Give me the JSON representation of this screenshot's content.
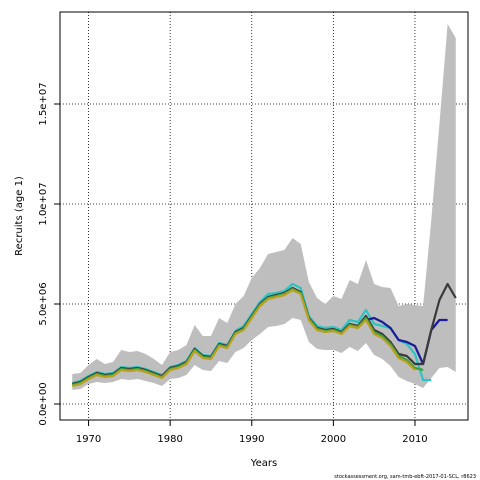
{
  "chart_data": {
    "type": "line",
    "xlabel": "Years",
    "ylabel": "Recruits (age 1)",
    "footer": "stockassessment.org, sam-tmb-ebft-2017-01-SCL, r8623",
    "xlim": [
      1966.5,
      2016.5
    ],
    "ylim": [
      -800000,
      19600000
    ],
    "x_ticks": [
      1970,
      1980,
      1990,
      2000,
      2010
    ],
    "x_tick_labels": [
      "1970",
      "1980",
      "1990",
      "2000",
      "2010"
    ],
    "y_ticks": [
      0,
      5000000,
      10000000,
      15000000
    ],
    "y_tick_labels": [
      "0.0e+00",
      "5.0e+06",
      "1.0e+07",
      "1.5e+07"
    ],
    "grid": true,
    "band": {
      "x": [
        1968,
        1969,
        1970,
        1971,
        1972,
        1973,
        1974,
        1975,
        1976,
        1977,
        1978,
        1979,
        1980,
        1981,
        1982,
        1983,
        1984,
        1985,
        1986,
        1987,
        1988,
        1989,
        1990,
        1991,
        1992,
        1993,
        1994,
        1995,
        1996,
        1997,
        1998,
        1999,
        2000,
        2001,
        2002,
        2003,
        2004,
        2005,
        2006,
        2007,
        2008,
        2009,
        2010,
        2011,
        2012,
        2013,
        2014,
        2015
      ],
      "lower": [
        700000,
        750000,
        1000000,
        1100000,
        1050000,
        1100000,
        1250000,
        1200000,
        1250000,
        1150000,
        1050000,
        900000,
        1250000,
        1300000,
        1450000,
        1950000,
        1700000,
        1650000,
        2150000,
        2050000,
        2600000,
        2800000,
        3200000,
        3500000,
        3850000,
        3900000,
        4000000,
        4300000,
        4200000,
        3100000,
        2750000,
        2700000,
        2700000,
        2550000,
        2850000,
        2650000,
        3050000,
        2450000,
        2250000,
        1900000,
        1350000,
        1150000,
        1000000,
        800000,
        1300000,
        1800000,
        1850000,
        1600000
      ],
      "upper": [
        1500000,
        1550000,
        1950000,
        2250000,
        2000000,
        2100000,
        2700000,
        2600000,
        2650000,
        2500000,
        2250000,
        1950000,
        2600000,
        2700000,
        2950000,
        3950000,
        3400000,
        3400000,
        4300000,
        4050000,
        5000000,
        5400000,
        6300000,
        6800000,
        7500000,
        7600000,
        7700000,
        8300000,
        8000000,
        6100000,
        5300000,
        5000000,
        5400000,
        5250000,
        6200000,
        6000000,
        7200000,
        6000000,
        5850000,
        5800000,
        4900000,
        5000000,
        4950000,
        4900000,
        9200000,
        14000000,
        19000000,
        18300000
      ]
    },
    "series": [
      {
        "color": "#2ec4c4",
        "x": [
          1968,
          1969,
          1970,
          1971,
          1972,
          1973,
          1974,
          1975,
          1976,
          1977,
          1978,
          1979,
          1980,
          1981,
          1982,
          1983,
          1984,
          1985,
          1986,
          1987,
          1988,
          1989,
          1990,
          1991,
          1992,
          1993,
          1994,
          1995,
          1996,
          1997,
          1998,
          1999,
          2000,
          2001,
          2002,
          2003,
          2004,
          2005,
          2006,
          2007,
          2008,
          2009,
          2010,
          2011,
          2012
        ],
        "values": [
          1050000,
          1150000,
          1400000,
          1600000,
          1500000,
          1550000,
          1850000,
          1800000,
          1850000,
          1750000,
          1600000,
          1450000,
          1850000,
          1950000,
          2150000,
          2800000,
          2450000,
          2400000,
          3050000,
          2950000,
          3650000,
          3900000,
          4500000,
          5100000,
          5500000,
          5550000,
          5650000,
          6000000,
          5800000,
          4400000,
          3900000,
          3800000,
          3850000,
          3700000,
          4200000,
          4100000,
          4700000,
          4000000,
          3900000,
          3800000,
          3200000,
          3000000,
          2500000,
          1200000,
          1200000
        ]
      },
      {
        "color": "#1a1a9a",
        "x": [
          2004,
          2005,
          2006,
          2007,
          2008,
          2009,
          2010,
          2011,
          2012,
          2013,
          2014
        ],
        "values": [
          4200000,
          4300000,
          4100000,
          3800000,
          3200000,
          3100000,
          2900000,
          2000000,
          3700000,
          4200000,
          4200000
        ]
      },
      {
        "color": "#3a3a3a",
        "x": [
          1968,
          1969,
          1970,
          1971,
          1972,
          1973,
          1974,
          1975,
          1976,
          1977,
          1978,
          1979,
          1980,
          1981,
          1982,
          1983,
          1984,
          1985,
          1986,
          1987,
          1988,
          1989,
          1990,
          1991,
          1992,
          1993,
          1994,
          1995,
          1996,
          1997,
          1998,
          1999,
          2000,
          2001,
          2002,
          2003,
          2004,
          2005,
          2006,
          2007,
          2008,
          2009,
          2010,
          2011,
          2012,
          2013,
          2014,
          2015
        ],
        "values": [
          1000000,
          1100000,
          1350000,
          1550000,
          1450000,
          1500000,
          1800000,
          1750000,
          1800000,
          1700000,
          1550000,
          1400000,
          1800000,
          1900000,
          2100000,
          2750000,
          2400000,
          2350000,
          3000000,
          2900000,
          3600000,
          3800000,
          4400000,
          5000000,
          5350000,
          5450000,
          5550000,
          5800000,
          5600000,
          4300000,
          3800000,
          3700000,
          3750000,
          3600000,
          4000000,
          3900000,
          4400000,
          3700000,
          3500000,
          3100000,
          2500000,
          2400000,
          2000000,
          2000000,
          3700000,
          5200000,
          6000000,
          5300000
        ]
      },
      {
        "color": "#3aa03a",
        "x": [
          1968,
          1969,
          1970,
          1971,
          1972,
          1973,
          1974,
          1975,
          1976,
          1977,
          1978,
          1979,
          1980,
          1981,
          1982,
          1983,
          1984,
          1985,
          1986,
          1987,
          1988,
          1989,
          1990,
          1991,
          1992,
          1993,
          1994,
          1995,
          1996,
          1997,
          1998,
          1999,
          2000,
          2001,
          2002,
          2003,
          2004,
          2005,
          2006,
          2007,
          2008,
          2009,
          2010,
          2011
        ],
        "values": [
          950000,
          1050000,
          1300000,
          1500000,
          1400000,
          1450000,
          1750000,
          1700000,
          1750000,
          1650000,
          1500000,
          1350000,
          1750000,
          1850000,
          2050000,
          2700000,
          2350000,
          2300000,
          2950000,
          2850000,
          3550000,
          3750000,
          4350000,
          4950000,
          5300000,
          5400000,
          5500000,
          5750000,
          5550000,
          4250000,
          3750000,
          3650000,
          3700000,
          3550000,
          3950000,
          3850000,
          4300000,
          3600000,
          3400000,
          3000000,
          2400000,
          2200000,
          1800000,
          1700000
        ]
      },
      {
        "color": "#b8a020",
        "x": [
          1968,
          1969,
          1970,
          1971,
          1972,
          1973,
          1974,
          1975,
          1976,
          1977,
          1978,
          1979,
          1980,
          1981,
          1982,
          1983,
          1984,
          1985,
          1986,
          1987,
          1988,
          1989,
          1990,
          1991,
          1992,
          1993,
          1994,
          1995,
          1996,
          1997,
          1998,
          1999,
          2000,
          2001,
          2002,
          2003,
          2004,
          2005,
          2006,
          2007,
          2008,
          2009,
          2010
        ],
        "values": [
          900000,
          1000000,
          1250000,
          1450000,
          1350000,
          1400000,
          1700000,
          1650000,
          1700000,
          1600000,
          1450000,
          1300000,
          1700000,
          1800000,
          2000000,
          2650000,
          2300000,
          2250000,
          2900000,
          2800000,
          3500000,
          3700000,
          4300000,
          4900000,
          5250000,
          5350000,
          5450000,
          5700000,
          5500000,
          4200000,
          3700000,
          3600000,
          3650000,
          3500000,
          3900000,
          3800000,
          4200000,
          3500000,
          3300000,
          2900000,
          2300000,
          2100000,
          1700000
        ]
      }
    ]
  }
}
